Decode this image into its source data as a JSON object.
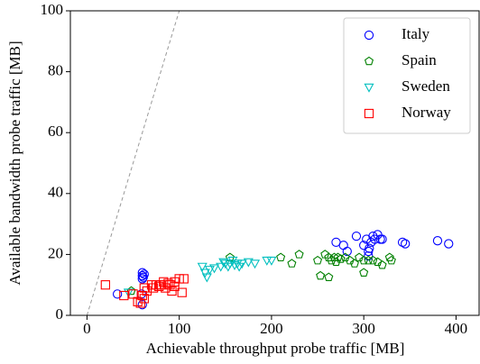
{
  "chart_data": {
    "type": "scatter",
    "xlabel": "Achievable throughput probe traffic [MB]",
    "ylabel": "Available bandwidth probe traffic [MB]",
    "xlim": [
      -18,
      425
    ],
    "ylim": [
      0,
      100
    ],
    "xticks": [
      0,
      100,
      200,
      300,
      400
    ],
    "yticks": [
      0,
      20,
      40,
      60,
      80,
      100
    ],
    "diagonal": true,
    "legend": "upper right",
    "series": [
      {
        "name": "Italy",
        "color": "#0000ff",
        "marker": "circle",
        "x": [
          60,
          60,
          61,
          60,
          62,
          60,
          33,
          59,
          270,
          278,
          282,
          292,
          300,
          303,
          305,
          306,
          308,
          310,
          312,
          315,
          318,
          320,
          342,
          345,
          380,
          392,
          305
        ],
        "values": [
          14,
          13,
          12.5,
          12,
          13.5,
          3.5,
          7,
          7,
          24,
          23,
          21,
          26,
          23,
          25,
          21,
          22,
          24,
          26,
          25,
          26.5,
          25,
          25,
          24,
          23.5,
          24.5,
          23.5,
          19.5
        ]
      },
      {
        "name": "Spain",
        "color": "#008000",
        "marker": "pentagon",
        "x": [
          155,
          210,
          222,
          230,
          250,
          253,
          258,
          262,
          262,
          265,
          268,
          270,
          272,
          275,
          280,
          285,
          290,
          295,
          300,
          300,
          305,
          310,
          315,
          320,
          328,
          330,
          48
        ],
        "values": [
          19,
          19,
          17,
          20,
          18,
          13,
          20,
          12.5,
          19,
          18,
          19,
          17.5,
          19,
          18.5,
          19,
          18,
          17,
          19,
          14,
          18,
          18,
          18,
          17.5,
          16.5,
          19,
          18,
          8
        ]
      },
      {
        "name": "Sweden",
        "color": "#00bfbf",
        "marker": "triangle-down",
        "x": [
          125,
          128,
          130,
          133,
          138,
          145,
          148,
          150,
          153,
          155,
          158,
          160,
          163,
          165,
          168,
          175,
          182,
          195,
          200,
          45
        ],
        "values": [
          16,
          14,
          12.5,
          15,
          15.5,
          16,
          17.5,
          17,
          16,
          17,
          18,
          16.5,
          17,
          16,
          17,
          17.5,
          17,
          18,
          18,
          7.5
        ]
      },
      {
        "name": "Norway",
        "color": "#ff0000",
        "marker": "square",
        "x": [
          20,
          40,
          50,
          55,
          58,
          60,
          62,
          65,
          70,
          72,
          75,
          78,
          80,
          83,
          85,
          88,
          90,
          92,
          95,
          95,
          100,
          105,
          103,
          62
        ],
        "values": [
          10,
          6.5,
          7,
          4.5,
          4,
          6.5,
          9,
          8,
          10,
          9,
          10,
          9.5,
          10,
          11,
          9,
          10.5,
          10,
          8,
          11,
          9.5,
          12,
          12,
          7.5,
          5.5
        ]
      }
    ]
  }
}
